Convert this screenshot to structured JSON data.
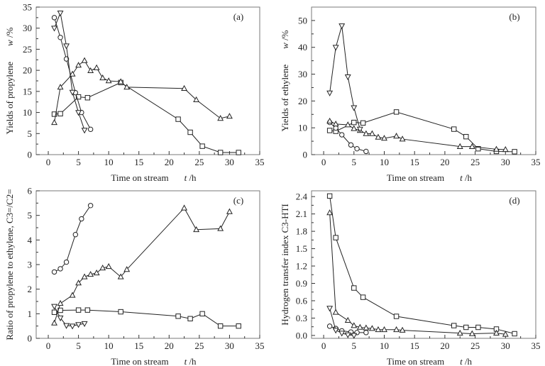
{
  "chart_data": [
    {
      "id": "a",
      "type": "line",
      "panel_label": "(a)",
      "xlabel": "Time on stream",
      "xlabel_var": "t",
      "xlabel_unit": " /h",
      "ylabel": "Yields of propylene",
      "ylabel_var": "w",
      "ylabel_unit": " /%",
      "xlim": [
        -2,
        35
      ],
      "ylim": [
        0,
        35
      ],
      "xticks": [
        0,
        5,
        10,
        15,
        20,
        25,
        30,
        35
      ],
      "yticks": [
        0,
        5,
        10,
        15,
        20,
        25,
        30,
        35
      ],
      "ytick_labels": [
        "0",
        "5",
        "10",
        "15",
        "20",
        "25",
        "30",
        "35"
      ],
      "series": [
        {
          "name": "square",
          "marker": "square",
          "x": [
            1,
            2,
            5,
            6.5,
            12,
            21.5,
            23.5,
            25.5,
            28.5,
            31.5
          ],
          "y": [
            9.6,
            9.7,
            13.7,
            13.5,
            17.1,
            8.4,
            5.3,
            2.0,
            0.5,
            0.5
          ]
        },
        {
          "name": "circle",
          "marker": "circle",
          "x": [
            1,
            2,
            3,
            4.5,
            5.5,
            7
          ],
          "y": [
            32.5,
            27.8,
            22.7,
            14.7,
            10.0,
            6.0
          ]
        },
        {
          "name": "triangle-up",
          "marker": "triangle-up",
          "x": [
            1,
            2,
            4,
            5,
            6,
            7,
            8,
            9,
            10,
            12,
            13,
            22.5,
            24.5,
            28.5,
            30
          ],
          "y": [
            7.6,
            16.0,
            19.1,
            21.2,
            22.3,
            19.9,
            20.6,
            18.2,
            17.5,
            17.3,
            16.0,
            15.7,
            13.0,
            8.6,
            9.1
          ]
        },
        {
          "name": "triangle-down",
          "marker": "triangle-down",
          "x": [
            1,
            2,
            3,
            4,
            5,
            6
          ],
          "y": [
            30.0,
            33.6,
            25.8,
            14.8,
            10.0,
            5.8
          ]
        }
      ]
    },
    {
      "id": "b",
      "type": "line",
      "panel_label": "(b)",
      "xlabel": "Time on stream",
      "xlabel_var": "t",
      "xlabel_unit": " /h",
      "ylabel": "Yields of ethylene",
      "ylabel_var": "w",
      "ylabel_unit": " /%",
      "xlim": [
        -2,
        35
      ],
      "ylim": [
        0,
        55
      ],
      "xticks": [
        0,
        5,
        10,
        15,
        20,
        25,
        30,
        35
      ],
      "yticks": [
        0,
        10,
        20,
        30,
        40,
        50
      ],
      "ytick_labels": [
        "0",
        "10",
        "20",
        "30",
        "40",
        "50"
      ],
      "series": [
        {
          "name": "square",
          "marker": "square",
          "x": [
            1,
            2,
            5,
            6.5,
            12,
            21.5,
            23.5,
            25.5,
            28.5,
            31.5
          ],
          "y": [
            9.0,
            8.7,
            12.0,
            11.8,
            15.9,
            9.5,
            6.7,
            2.2,
            1.2,
            1.1
          ]
        },
        {
          "name": "circle",
          "marker": "circle",
          "x": [
            1,
            2,
            3,
            4.5,
            5.5,
            7
          ],
          "y": [
            12.0,
            9.9,
            7.4,
            3.6,
            2.2,
            1.2
          ]
        },
        {
          "name": "triangle-up",
          "marker": "triangle-up",
          "x": [
            1,
            2,
            4,
            5,
            6,
            7,
            8,
            9,
            10,
            12,
            13,
            22.5,
            24.5,
            28.5,
            30
          ],
          "y": [
            12.5,
            11.4,
            11.1,
            9.7,
            9.0,
            7.8,
            7.8,
            6.5,
            6.1,
            6.9,
            5.8,
            3.0,
            3.0,
            2.0,
            1.9
          ]
        },
        {
          "name": "triangle-down",
          "marker": "triangle-down",
          "x": [
            1,
            2,
            3,
            4,
            5,
            6
          ],
          "y": [
            23.0,
            40.0,
            48.0,
            29.0,
            17.5,
            9.5
          ]
        }
      ]
    },
    {
      "id": "c",
      "type": "line",
      "panel_label": "(c)",
      "xlabel": "Time on stream",
      "xlabel_var": "t",
      "xlabel_unit": " /h",
      "ylabel": "Ratio of propylene to ethylene, C3=/C2=",
      "xlim": [
        -2,
        35
      ],
      "ylim": [
        0,
        6
      ],
      "xticks": [
        0,
        5,
        10,
        15,
        20,
        25,
        30,
        35
      ],
      "yticks": [
        0,
        1,
        2,
        3,
        4,
        5,
        6
      ],
      "ytick_labels": [
        "0",
        "1",
        "2",
        "3",
        "4",
        "5",
        "6"
      ],
      "series": [
        {
          "name": "square",
          "marker": "square",
          "x": [
            1,
            2,
            5,
            6.5,
            12,
            21.5,
            23.5,
            25.5,
            28.5,
            31.5
          ],
          "y": [
            1.06,
            1.14,
            1.15,
            1.15,
            1.08,
            0.9,
            0.8,
            1.0,
            0.5,
            0.5
          ]
        },
        {
          "name": "circle",
          "marker": "circle",
          "x": [
            1,
            2,
            3,
            4.5,
            5.5,
            7
          ],
          "y": [
            2.7,
            2.83,
            3.1,
            4.22,
            4.86,
            5.4
          ]
        },
        {
          "name": "triangle-up",
          "marker": "triangle-up",
          "x": [
            1,
            2,
            4,
            5,
            6,
            7,
            8,
            9,
            10,
            12,
            13,
            22.5,
            24.5,
            28.5,
            30
          ],
          "y": [
            0.62,
            1.42,
            1.75,
            2.25,
            2.5,
            2.6,
            2.66,
            2.86,
            2.92,
            2.5,
            2.8,
            5.3,
            4.42,
            4.46,
            5.15
          ]
        },
        {
          "name": "triangle-down",
          "marker": "triangle-down",
          "x": [
            1,
            2,
            3,
            4,
            5,
            6
          ],
          "y": [
            1.3,
            0.83,
            0.52,
            0.5,
            0.56,
            0.6
          ]
        }
      ]
    },
    {
      "id": "d",
      "type": "line",
      "panel_label": "(d)",
      "xlabel": "Time on stream",
      "xlabel_var": "t",
      "xlabel_unit": " /h",
      "ylabel": "Hydrogen transfer index C3-HTI",
      "xlim": [
        -2,
        35
      ],
      "ylim": [
        -0.05,
        2.5
      ],
      "xticks": [
        0,
        5,
        10,
        15,
        20,
        25,
        30,
        35
      ],
      "yticks": [
        0.0,
        0.3,
        0.6,
        0.9,
        1.2,
        1.5,
        1.8,
        2.1,
        2.4
      ],
      "ytick_labels": [
        "0.0",
        "0.3",
        "0.6",
        "0.9",
        "1.2",
        "1.5",
        "1.8",
        "2.1",
        "2.4"
      ],
      "series": [
        {
          "name": "square",
          "marker": "square",
          "x": [
            1,
            2,
            5,
            6.5,
            12,
            21.5,
            23.5,
            25.5,
            28.5,
            31.5
          ],
          "y": [
            2.41,
            1.69,
            0.82,
            0.66,
            0.33,
            0.17,
            0.14,
            0.14,
            0.11,
            0.03
          ]
        },
        {
          "name": "circle",
          "marker": "circle",
          "x": [
            1,
            2,
            3,
            4.5,
            5.5,
            7
          ],
          "y": [
            0.16,
            0.12,
            0.08,
            0.06,
            0.05,
            0.05
          ]
        },
        {
          "name": "triangle-up",
          "marker": "triangle-up",
          "x": [
            1,
            2,
            4,
            5,
            6,
            7,
            8,
            9,
            10,
            12,
            13,
            22.5,
            24.5,
            28.5,
            30
          ],
          "y": [
            2.12,
            0.4,
            0.26,
            0.17,
            0.14,
            0.13,
            0.12,
            0.1,
            0.1,
            0.1,
            0.09,
            0.04,
            0.03,
            0.04,
            0.02
          ]
        },
        {
          "name": "triangle-down",
          "marker": "triangle-down",
          "x": [
            1,
            2,
            3,
            4,
            5
          ],
          "y": [
            0.47,
            0.09,
            0.04,
            0.01,
            0.0
          ]
        }
      ]
    }
  ]
}
